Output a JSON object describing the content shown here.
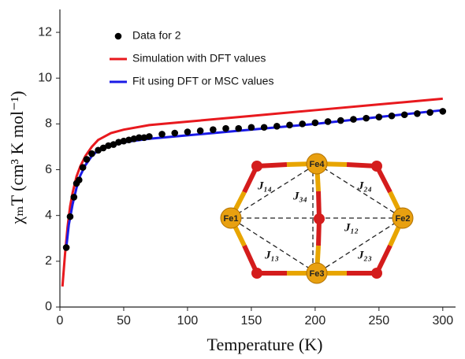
{
  "chart_data": {
    "type": "line",
    "x_label": "Temperature (K)",
    "y_label": "χₘT (cm³ K mol⁻¹)",
    "xlim": [
      0,
      310
    ],
    "ylim": [
      0,
      13
    ],
    "xticks": [
      0,
      50,
      100,
      150,
      200,
      250,
      300
    ],
    "yticks": [
      0,
      2,
      4,
      6,
      8,
      10,
      12
    ],
    "series": [
      {
        "name": "Data for 2",
        "kind": "scatter",
        "color": "#000000",
        "x": [
          5,
          8,
          11,
          13,
          15,
          18,
          21,
          25,
          30,
          34,
          38,
          42,
          46,
          50,
          54,
          58,
          62,
          66,
          70,
          80,
          90,
          100,
          110,
          120,
          130,
          140,
          150,
          160,
          170,
          180,
          190,
          200,
          210,
          220,
          230,
          240,
          250,
          260,
          270,
          280,
          290,
          300
        ],
        "values": [
          2.6,
          3.95,
          4.8,
          5.4,
          5.55,
          6.1,
          6.45,
          6.7,
          6.85,
          6.95,
          7.05,
          7.1,
          7.2,
          7.25,
          7.3,
          7.35,
          7.4,
          7.4,
          7.45,
          7.55,
          7.6,
          7.65,
          7.7,
          7.75,
          7.8,
          7.8,
          7.85,
          7.85,
          7.9,
          7.95,
          8.0,
          8.05,
          8.1,
          8.15,
          8.2,
          8.25,
          8.3,
          8.35,
          8.4,
          8.45,
          8.5,
          8.55
        ]
      },
      {
        "name": "Simulation with DFT values",
        "kind": "line",
        "color": "#e8191e",
        "x": [
          2,
          4,
          6,
          8,
          10,
          13,
          16,
          20,
          25,
          30,
          40,
          50,
          70,
          100,
          150,
          200,
          250,
          300
        ],
        "values": [
          0.9,
          2.3,
          3.5,
          4.4,
          5.0,
          5.7,
          6.15,
          6.6,
          7.0,
          7.3,
          7.6,
          7.75,
          7.95,
          8.1,
          8.35,
          8.6,
          8.85,
          9.1
        ]
      },
      {
        "name": "Fit using DFT or MSC values",
        "kind": "line",
        "color": "#1a1ae6",
        "x": [
          5,
          7,
          10,
          13,
          16,
          20,
          25,
          30,
          40,
          50,
          70,
          100,
          150,
          200,
          250,
          300
        ],
        "values": [
          2.6,
          3.6,
          4.5,
          5.2,
          5.75,
          6.2,
          6.6,
          6.85,
          7.05,
          7.2,
          7.35,
          7.5,
          7.75,
          8.0,
          8.3,
          8.6
        ]
      }
    ],
    "inset": {
      "nodes": [
        "Fe4",
        "Fe1",
        "Fe2",
        "Fe3"
      ],
      "couplings": [
        "J₁₄",
        "J₃₄",
        "J₂₄",
        "J₁₂",
        "J₁₃",
        "J₂₃"
      ]
    }
  }
}
